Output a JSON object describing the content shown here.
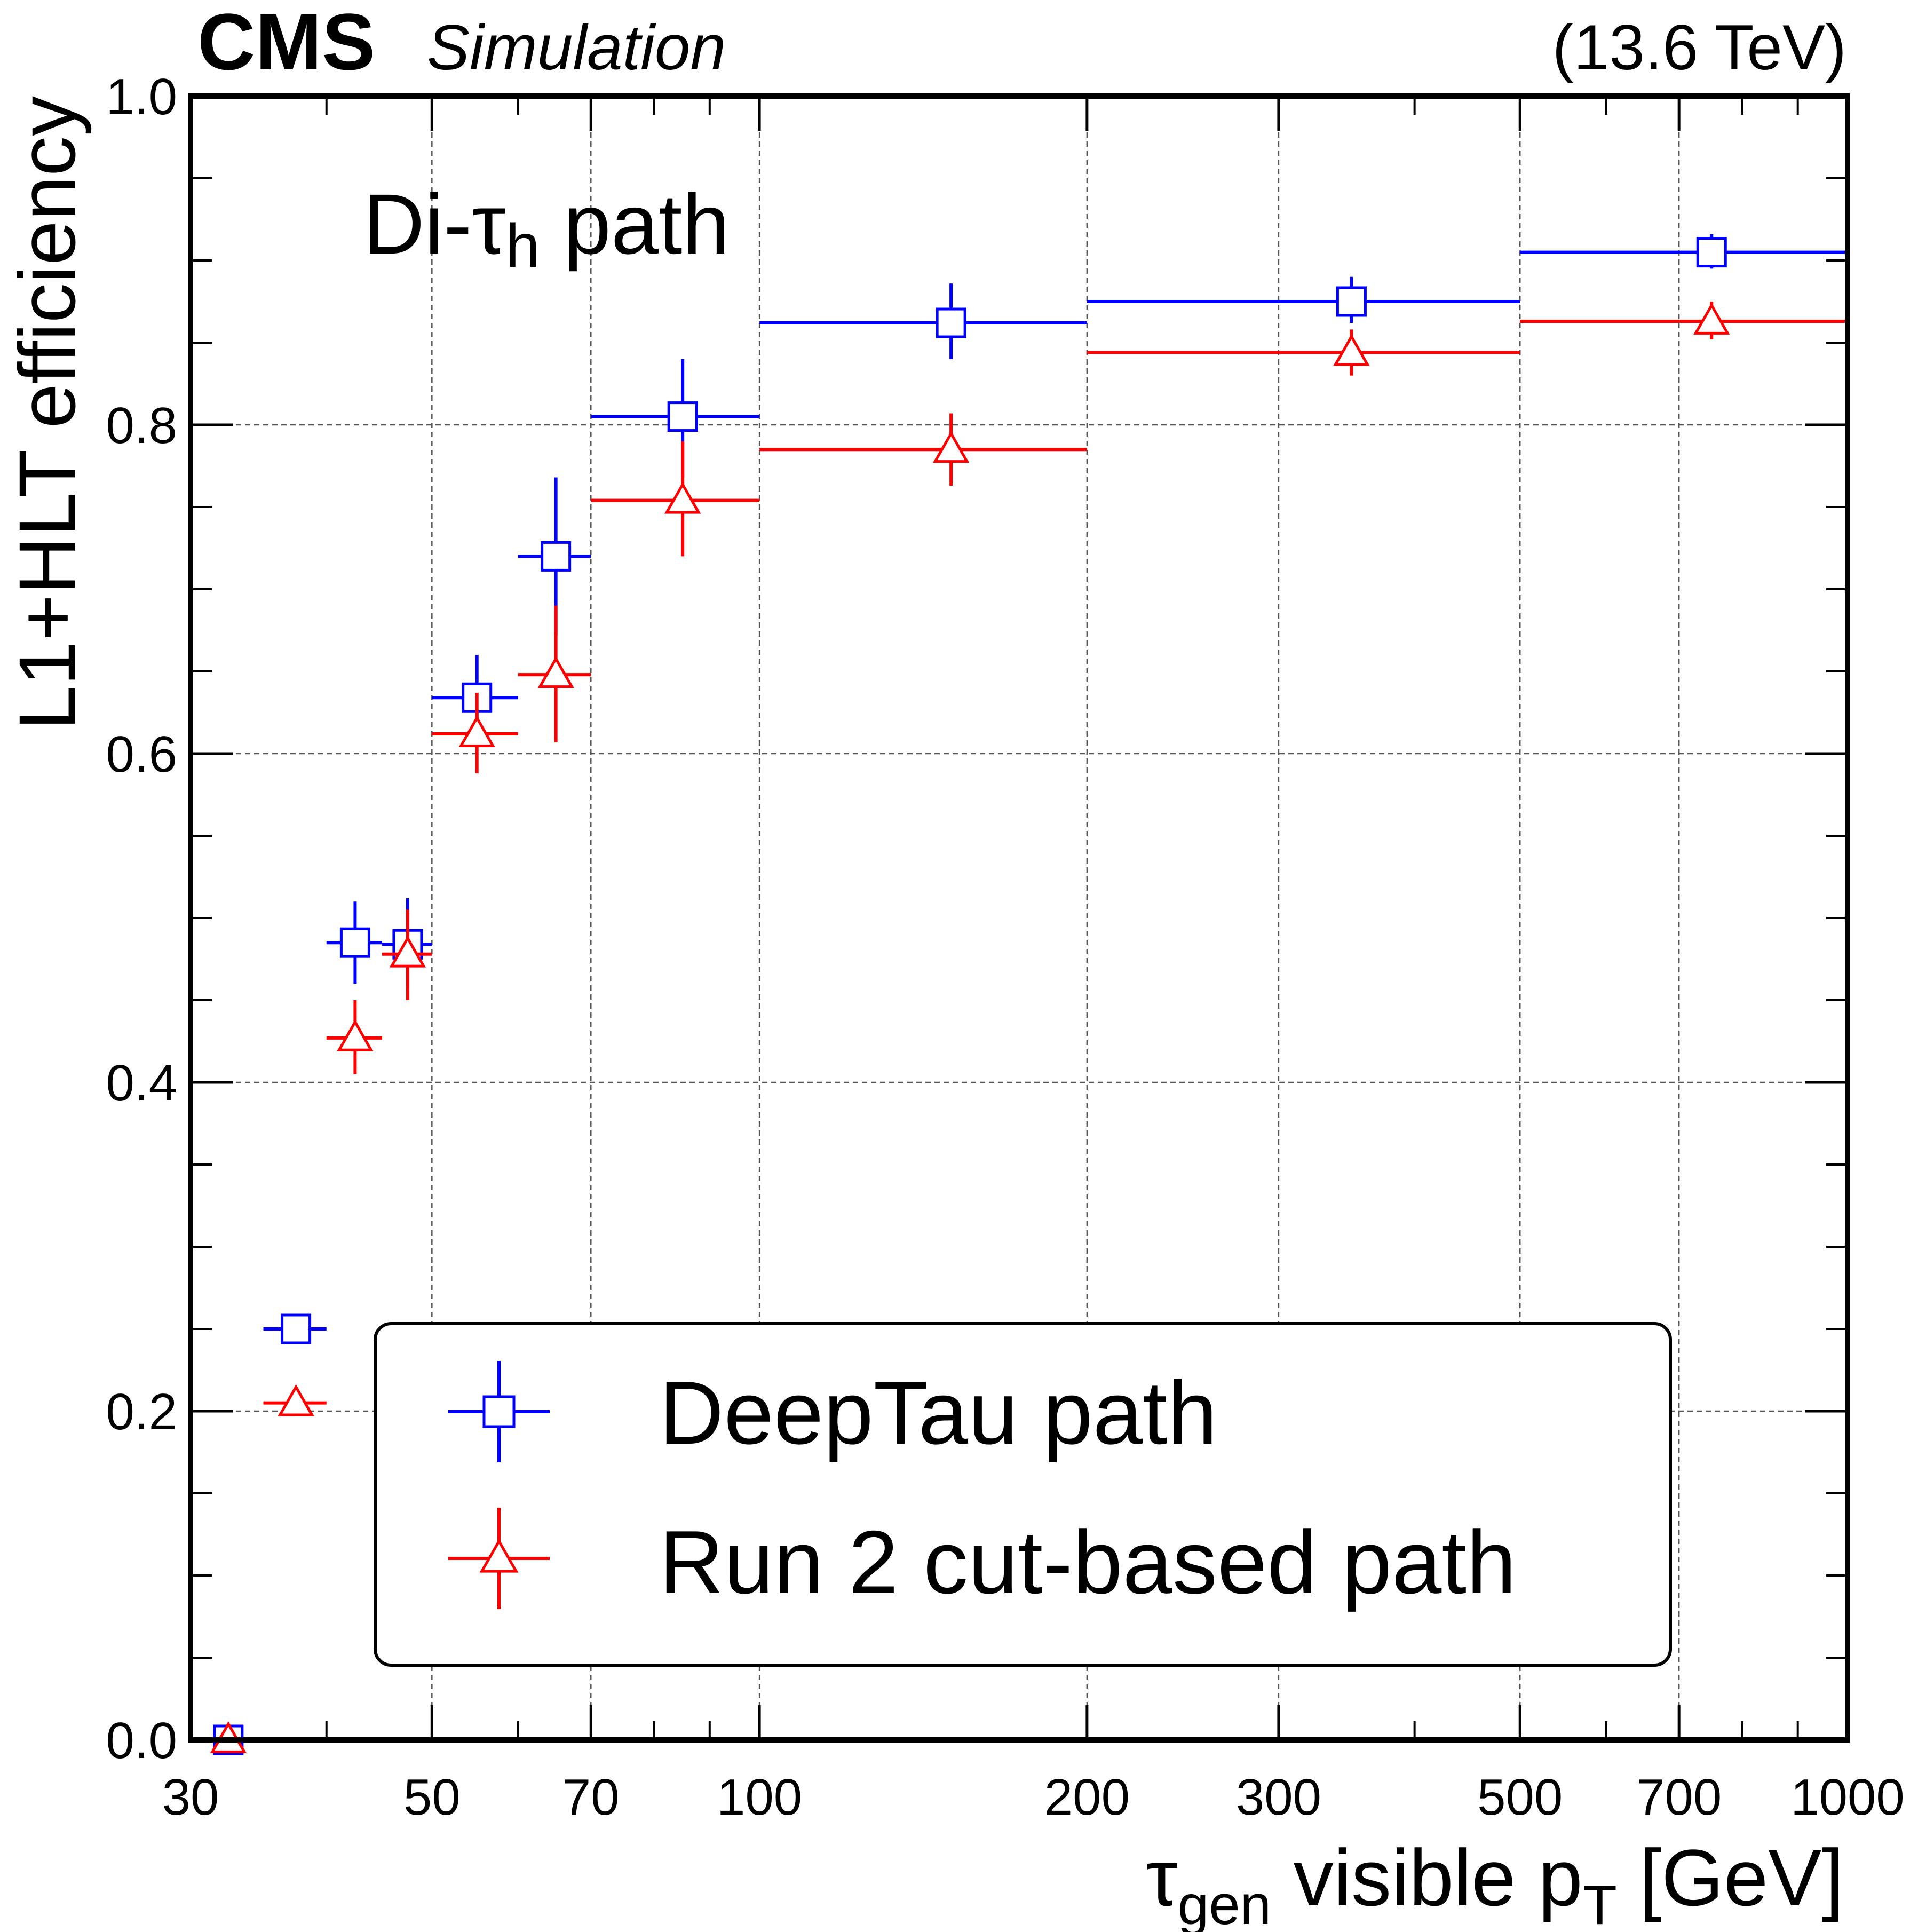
{
  "header": {
    "experiment": "CMS",
    "subtitle": "Simulation",
    "energy": "(13.6 TeV)"
  },
  "annotation": {
    "text_main": "Di-τ",
    "text_sub": "h",
    "text_tail": " path"
  },
  "colors": {
    "deeptau": "#0000ff",
    "cutbased": "#ff0000",
    "grid": "#555555"
  },
  "chart_data": {
    "type": "scatter",
    "xscale": "log",
    "xlim": [
      30,
      1000
    ],
    "ylim": [
      0.0,
      1.0
    ],
    "xlabel": {
      "main": "τ",
      "sub": "gen",
      "rest": " visible p",
      "sub2": "T",
      "tail": " [GeV]"
    },
    "ylabel": "L1+HLT efficiency",
    "x_ticks": [
      30,
      50,
      70,
      100,
      200,
      300,
      500,
      700,
      1000
    ],
    "x_tick_labels": [
      "30",
      "50",
      "70",
      "100",
      "200",
      "300",
      "500",
      "700",
      "1000"
    ],
    "x_minor_ticks": [
      40,
      60,
      80,
      90,
      400,
      600,
      800,
      900
    ],
    "y_ticks": [
      0.0,
      0.2,
      0.4,
      0.6,
      0.8,
      1.0
    ],
    "y_tick_labels": [
      "0.0",
      "0.2",
      "0.4",
      "0.6",
      "0.8",
      "1.0"
    ],
    "grid": true,
    "legend_position": "bottom-right",
    "series": [
      {
        "name": "DeepTau path",
        "marker": "open-square",
        "color": "#0000ff",
        "points": [
          {
            "x": 32.5,
            "xlo": 30,
            "xhi": 35,
            "y": 0.0,
            "ylo": 0.0,
            "yhi": 0.002
          },
          {
            "x": 37.5,
            "xlo": 35,
            "xhi": 40,
            "y": 0.25,
            "ylo": 0.243,
            "yhi": 0.259
          },
          {
            "x": 42.5,
            "xlo": 40,
            "xhi": 45,
            "y": 0.485,
            "ylo": 0.46,
            "yhi": 0.51
          },
          {
            "x": 47.5,
            "xlo": 45,
            "xhi": 50,
            "y": 0.484,
            "ylo": 0.457,
            "yhi": 0.512
          },
          {
            "x": 55,
            "xlo": 50,
            "xhi": 60,
            "y": 0.634,
            "ylo": 0.605,
            "yhi": 0.66
          },
          {
            "x": 65,
            "xlo": 60,
            "xhi": 70,
            "y": 0.72,
            "ylo": 0.672,
            "yhi": 0.768
          },
          {
            "x": 85,
            "xlo": 70,
            "xhi": 100,
            "y": 0.805,
            "ylo": 0.768,
            "yhi": 0.84
          },
          {
            "x": 150,
            "xlo": 100,
            "xhi": 200,
            "y": 0.862,
            "ylo": 0.84,
            "yhi": 0.886
          },
          {
            "x": 350,
            "xlo": 200,
            "xhi": 500,
            "y": 0.875,
            "ylo": 0.862,
            "yhi": 0.89
          },
          {
            "x": 750,
            "xlo": 500,
            "xhi": 1000,
            "y": 0.905,
            "ylo": 0.895,
            "yhi": 0.916
          }
        ]
      },
      {
        "name": "Run 2 cut-based path",
        "marker": "open-triangle",
        "color": "#ff0000",
        "points": [
          {
            "x": 32.5,
            "xlo": 30,
            "xhi": 35,
            "y": 0.0,
            "ylo": 0.0,
            "yhi": 0.002
          },
          {
            "x": 37.5,
            "xlo": 35,
            "xhi": 40,
            "y": 0.205,
            "ylo": 0.2,
            "yhi": 0.212
          },
          {
            "x": 42.5,
            "xlo": 40,
            "xhi": 45,
            "y": 0.427,
            "ylo": 0.405,
            "yhi": 0.45
          },
          {
            "x": 47.5,
            "xlo": 45,
            "xhi": 50,
            "y": 0.478,
            "ylo": 0.45,
            "yhi": 0.505
          },
          {
            "x": 55,
            "xlo": 50,
            "xhi": 60,
            "y": 0.612,
            "ylo": 0.588,
            "yhi": 0.637
          },
          {
            "x": 65,
            "xlo": 60,
            "xhi": 70,
            "y": 0.648,
            "ylo": 0.607,
            "yhi": 0.69
          },
          {
            "x": 85,
            "xlo": 70,
            "xhi": 100,
            "y": 0.754,
            "ylo": 0.72,
            "yhi": 0.79
          },
          {
            "x": 150,
            "xlo": 100,
            "xhi": 200,
            "y": 0.785,
            "ylo": 0.763,
            "yhi": 0.807
          },
          {
            "x": 350,
            "xlo": 200,
            "xhi": 500,
            "y": 0.844,
            "ylo": 0.83,
            "yhi": 0.858
          },
          {
            "x": 750,
            "xlo": 500,
            "xhi": 1000,
            "y": 0.863,
            "ylo": 0.852,
            "yhi": 0.875
          }
        ]
      }
    ]
  }
}
